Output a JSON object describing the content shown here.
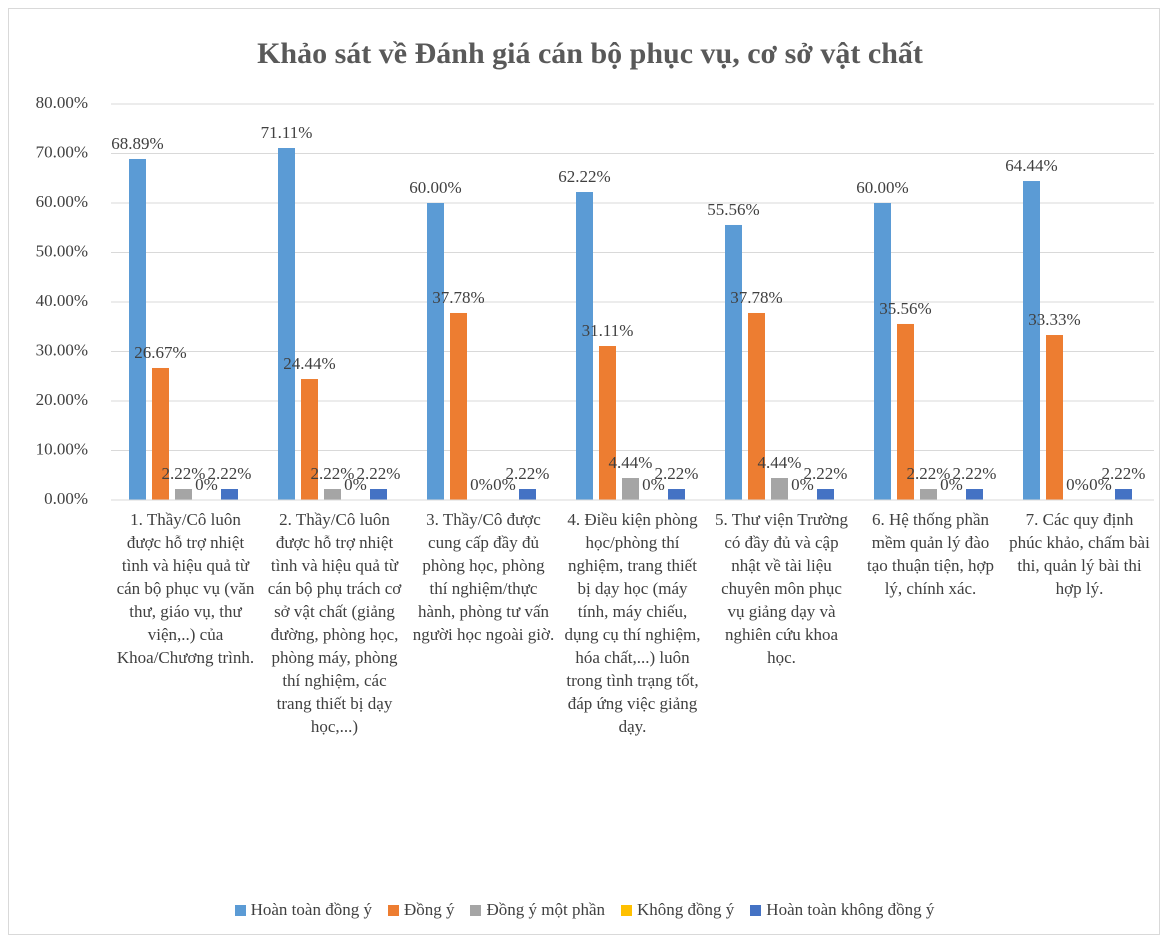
{
  "chart_data": {
    "type": "bar",
    "title": "Khảo sát về Đánh giá cán bộ phục vụ, cơ sở vật chất",
    "categories": [
      "1. Thầy/Cô luôn được hỗ trợ nhiệt tình và hiệu quả từ cán bộ phục vụ (văn thư, giáo vụ, thư viện,..) của Khoa/Chương trình.",
      "2. Thầy/Cô luôn được hỗ trợ nhiệt tình và hiệu quả từ cán bộ phụ trách cơ sở vật chất (giảng đường, phòng học, phòng máy, phòng thí nghiệm, các trang thiết bị dạy học,...)",
      "3. Thầy/Cô được cung cấp đầy đủ phòng học, phòng thí nghiệm/thực hành, phòng tư vấn người học ngoài giờ.",
      "4. Điều kiện phòng học/phòng thí nghiệm, trang thiết bị dạy học (máy tính, máy chiếu, dụng cụ thí nghiệm, hóa chất,...) luôn trong tình trạng tốt, đáp ứng việc giảng dạy.",
      "5. Thư viện Trường có đầy đủ và cập nhật về tài liệu chuyên môn phục vụ giảng dạy và nghiên cứu khoa học.",
      "6. Hệ thống phần mềm quản lý đào tạo thuận tiện, hợp lý, chính xác.",
      "7. Các quy định phúc khảo, chấm bài thi, quản lý bài thi hợp lý."
    ],
    "series": [
      {
        "name": "Hoàn toàn đồng ý",
        "color": "#5b9bd5",
        "values": [
          68.89,
          71.11,
          60.0,
          62.22,
          55.56,
          60.0,
          64.44
        ],
        "value_labels": [
          "68.89%",
          "71.11%",
          "60.00%",
          "62.22%",
          "55.56%",
          "60.00%",
          "64.44%"
        ]
      },
      {
        "name": "Đồng ý",
        "color": "#ed7d31",
        "values": [
          26.67,
          24.44,
          37.78,
          31.11,
          37.78,
          35.56,
          33.33
        ],
        "value_labels": [
          "26.67%",
          "24.44%",
          "37.78%",
          "31.11%",
          "37.78%",
          "35.56%",
          "33.33%"
        ]
      },
      {
        "name": "Đồng ý một phần",
        "color": "#a5a5a5",
        "values": [
          2.22,
          2.22,
          0,
          4.44,
          4.44,
          2.22,
          0
        ],
        "value_labels": [
          "2.22%",
          "2.22%",
          "0%",
          "4.44%",
          "4.44%",
          "2.22%",
          "0%"
        ]
      },
      {
        "name": "Không đồng ý",
        "color": "#ffc000",
        "values": [
          0,
          0,
          0,
          0,
          0,
          0,
          0
        ],
        "value_labels": [
          "0%",
          "0%",
          "0%",
          "0%",
          "0%",
          "0%",
          "0%"
        ]
      },
      {
        "name": "Hoàn toàn không đồng ý",
        "color": "#4472c4",
        "values": [
          2.22,
          2.22,
          2.22,
          2.22,
          2.22,
          2.22,
          2.22
        ],
        "value_labels": [
          "2.22%",
          "2.22%",
          "2.22%",
          "2.22%",
          "2.22%",
          "2.22%",
          "2.22%"
        ]
      }
    ],
    "ylim": [
      0,
      80
    ],
    "yticks": [
      {
        "value": 0,
        "label": "0.00%"
      },
      {
        "value": 10,
        "label": "10.00%"
      },
      {
        "value": 20,
        "label": "20.00%"
      },
      {
        "value": 30,
        "label": "30.00%"
      },
      {
        "value": 40,
        "label": "40.00%"
      },
      {
        "value": 50,
        "label": "50.00%"
      },
      {
        "value": 60,
        "label": "60.00%"
      },
      {
        "value": 70,
        "label": "70.00%"
      },
      {
        "value": 80,
        "label": "80.00%"
      }
    ],
    "grid": true,
    "legend": "bottom"
  }
}
